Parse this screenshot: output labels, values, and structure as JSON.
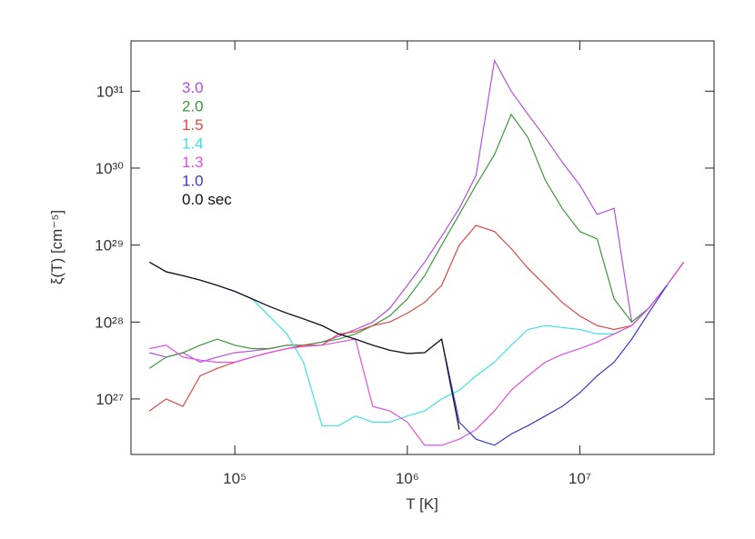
{
  "chart_data": {
    "type": "line",
    "step": true,
    "xlabel": "T [K]",
    "ylabel": "ξ(T) [cm⁻⁵]",
    "xscale": "log",
    "yscale": "log",
    "xlim": [
      25000,
      60000000
    ],
    "ylim": [
      1.9e+26,
      4.5e+31
    ],
    "xticks": [
      {
        "value": 100000,
        "label": "10⁵"
      },
      {
        "value": 1000000,
        "label": "10⁶"
      },
      {
        "value": 10000000,
        "label": "10⁷"
      }
    ],
    "yticks": [
      {
        "value": 1e+27,
        "label": "10²⁷"
      },
      {
        "value": 1e+28,
        "label": "10²⁸"
      },
      {
        "value": 1e+29,
        "label": "10²⁹"
      },
      {
        "value": 1e+30,
        "label": "10³⁰"
      },
      {
        "value": 1e+31,
        "label": "10³¹"
      }
    ],
    "x": [
      32000,
      40000,
      50000,
      63000,
      79000,
      100000,
      126000,
      158000,
      200000,
      250000,
      320000,
      400000,
      500000,
      630000,
      790000,
      1000000,
      1260000,
      1580000,
      2000000,
      2500000,
      3200000,
      4000000,
      5000000,
      6300000,
      7900000,
      10000000,
      12600000,
      15800000,
      20000000,
      25000000,
      32000000,
      40000000
    ],
    "series": [
      {
        "name": "3.0",
        "color": "#b44fe0",
        "values": [
          4e+27,
          3.5e+27,
          4e+27,
          3e+27,
          3.5e+27,
          4e+27,
          4.2e+27,
          4.5e+27,
          5e+27,
          5e+27,
          5.5e+27,
          6.5e+27,
          8e+27,
          1e+28,
          1.5e+28,
          3e+28,
          6e+28,
          1.3e+29,
          3e+29,
          8e+29,
          2.5e+31,
          1e+31,
          5e+30,
          2.5e+30,
          1.2e+30,
          6e+29,
          2.5e+29,
          3e+29,
          1e+28,
          1.5e+28,
          3e+28,
          6e+28
        ]
      },
      {
        "name": "2.0",
        "color": "#3a9a3a",
        "values": [
          2.5e+27,
          3.5e+27,
          4e+27,
          5e+27,
          6e+27,
          5e+27,
          4.5e+27,
          4.5e+27,
          5e+27,
          5e+27,
          5.5e+27,
          6e+27,
          7e+27,
          9e+27,
          1.2e+28,
          2e+28,
          4e+28,
          1e+29,
          2.5e+29,
          6e+29,
          1.5e+30,
          5e+30,
          2.5e+30,
          7e+29,
          3e+29,
          1.5e+29,
          1.2e+29,
          2e+28,
          1e+28,
          1.5e+28,
          3e+28,
          6e+28
        ]
      },
      {
        "name": "1.5",
        "color": "#e04848",
        "values": [
          7e+26,
          1e+27,
          8e+26,
          2e+27,
          2.5e+27,
          3e+27,
          3.5e+27,
          4e+27,
          4.5e+27,
          5e+27,
          5e+27,
          7e+27,
          7.5e+27,
          9e+27,
          1e+28,
          1.3e+28,
          1.8e+28,
          3e+28,
          1e+29,
          1.8e+29,
          1.5e+29,
          9e+28,
          5e+28,
          3e+28,
          1.8e+28,
          1.2e+28,
          9e+27,
          8e+27,
          9e+27,
          1.5e+28,
          3e+28,
          null
        ]
      },
      {
        "name": "1.4",
        "color": "#40e0e0",
        "values": [
          6e+28,
          4.5e+28,
          4e+28,
          3.5e+28,
          3e+28,
          2.5e+28,
          2e+28,
          1.2e+28,
          7e+27,
          3e+27,
          4.5e+26,
          4.5e+26,
          6e+26,
          5e+26,
          5e+26,
          6e+26,
          7e+26,
          1e+27,
          1.3e+27,
          2e+27,
          3e+27,
          5e+27,
          8e+27,
          9e+27,
          8.5e+27,
          8e+27,
          7e+27,
          7e+27,
          9e+27,
          1.5e+28,
          3e+28,
          null
        ]
      },
      {
        "name": "1.3",
        "color": "#e050e0",
        "values": [
          4.5e+27,
          5e+27,
          3.5e+27,
          3.2e+27,
          3e+27,
          3e+27,
          3.5e+27,
          4e+27,
          4.5e+27,
          4.8e+27,
          5e+27,
          5.5e+27,
          6e+27,
          8e+26,
          7e+26,
          5e+26,
          2.5e+26,
          2.5e+26,
          3e+26,
          4e+26,
          7e+26,
          1.3e+27,
          2e+27,
          3e+27,
          3.8e+27,
          4.5e+27,
          5.5e+27,
          7e+27,
          9e+27,
          1.5e+28,
          3e+28,
          6e+28
        ]
      },
      {
        "name": "1.0",
        "color": "#3838d0",
        "values": [
          6e+28,
          4.5e+28,
          4e+28,
          3.5e+28,
          3e+28,
          2.5e+28,
          2e+28,
          1.6e+28,
          1.3e+28,
          1.1e+28,
          9e+27,
          7e+27,
          6e+27,
          5e+27,
          4.3e+27,
          3.9e+27,
          4e+27,
          6e+27,
          5e+26,
          3e+26,
          2.5e+26,
          3.5e+26,
          4.5e+26,
          6e+26,
          8e+26,
          1.2e+27,
          2e+27,
          3e+27,
          6e+27,
          1.3e+28,
          3e+28,
          null
        ]
      },
      {
        "name": "0.0 sec",
        "color": "#111111",
        "values": [
          6e+28,
          4.5e+28,
          4e+28,
          3.5e+28,
          3e+28,
          2.5e+28,
          2e+28,
          1.6e+28,
          1.3e+28,
          1.1e+28,
          9e+27,
          7e+27,
          6e+27,
          5e+27,
          4.3e+27,
          3.9e+27,
          4e+27,
          6e+27,
          4e+26,
          null,
          null,
          null,
          null,
          null,
          null,
          null,
          null,
          null,
          null,
          null,
          null,
          null
        ]
      }
    ]
  }
}
